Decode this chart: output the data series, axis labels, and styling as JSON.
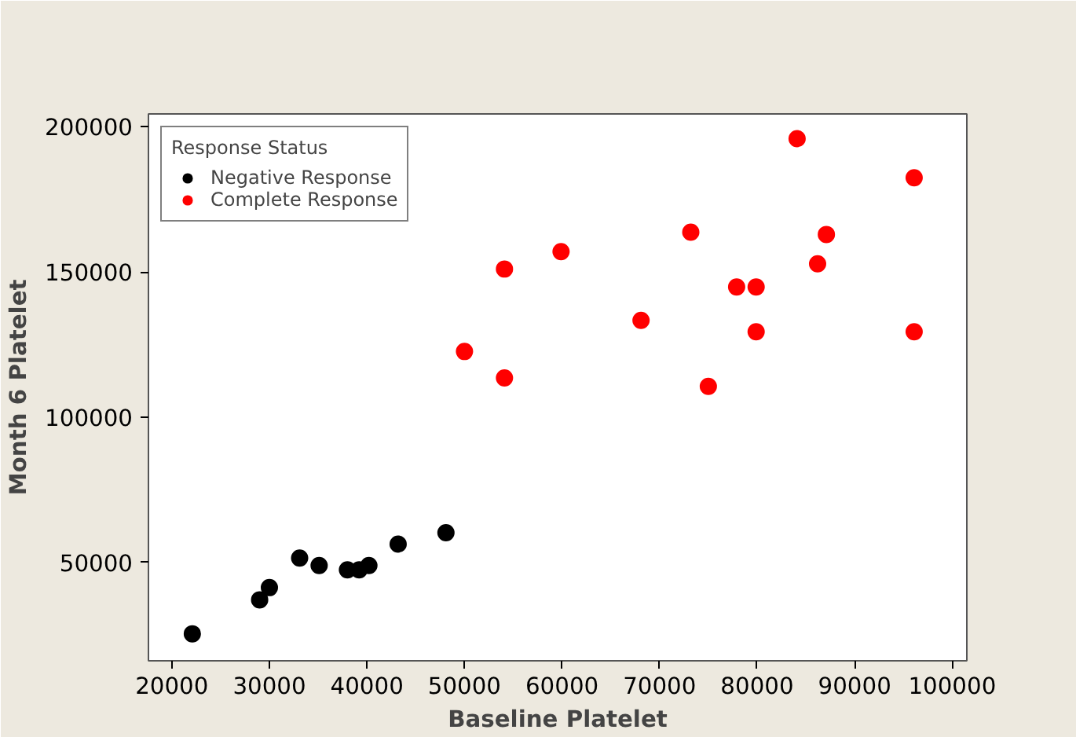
{
  "chart_data": {
    "type": "scatter",
    "xlabel": "Baseline Platelet",
    "ylabel": "Month 6 Platelet",
    "legend_title": "Response Status",
    "legend": "top left",
    "grid": false,
    "marker": "circle",
    "xlim": [
      17600,
      101500
    ],
    "ylim": [
      16100,
      204400
    ],
    "xticks": [
      20000,
      30000,
      40000,
      50000,
      60000,
      70000,
      80000,
      90000,
      100000
    ],
    "yticks": [
      50000,
      100000,
      150000,
      200000
    ],
    "series": [
      {
        "name": "Negative Response",
        "color": "#000000",
        "x": [
          22100,
          29000,
          30000,
          33100,
          35100,
          38000,
          39200,
          40200,
          43200,
          48100
        ],
        "values": [
          25400,
          37100,
          41300,
          51500,
          48900,
          47400,
          47400,
          48900,
          56300,
          60200
        ]
      },
      {
        "name": "Complete Response",
        "color": "#ff0000",
        "x": [
          50000,
          54100,
          54100,
          59900,
          84100,
          96100,
          73200,
          87100,
          86200,
          77900,
          79900,
          68100,
          79900,
          96100,
          75000
        ],
        "values": [
          122600,
          151000,
          113500,
          157000,
          195900,
          182400,
          163700,
          162900,
          152800,
          144800,
          144800,
          133300,
          129400,
          129400,
          110600
        ]
      }
    ]
  }
}
